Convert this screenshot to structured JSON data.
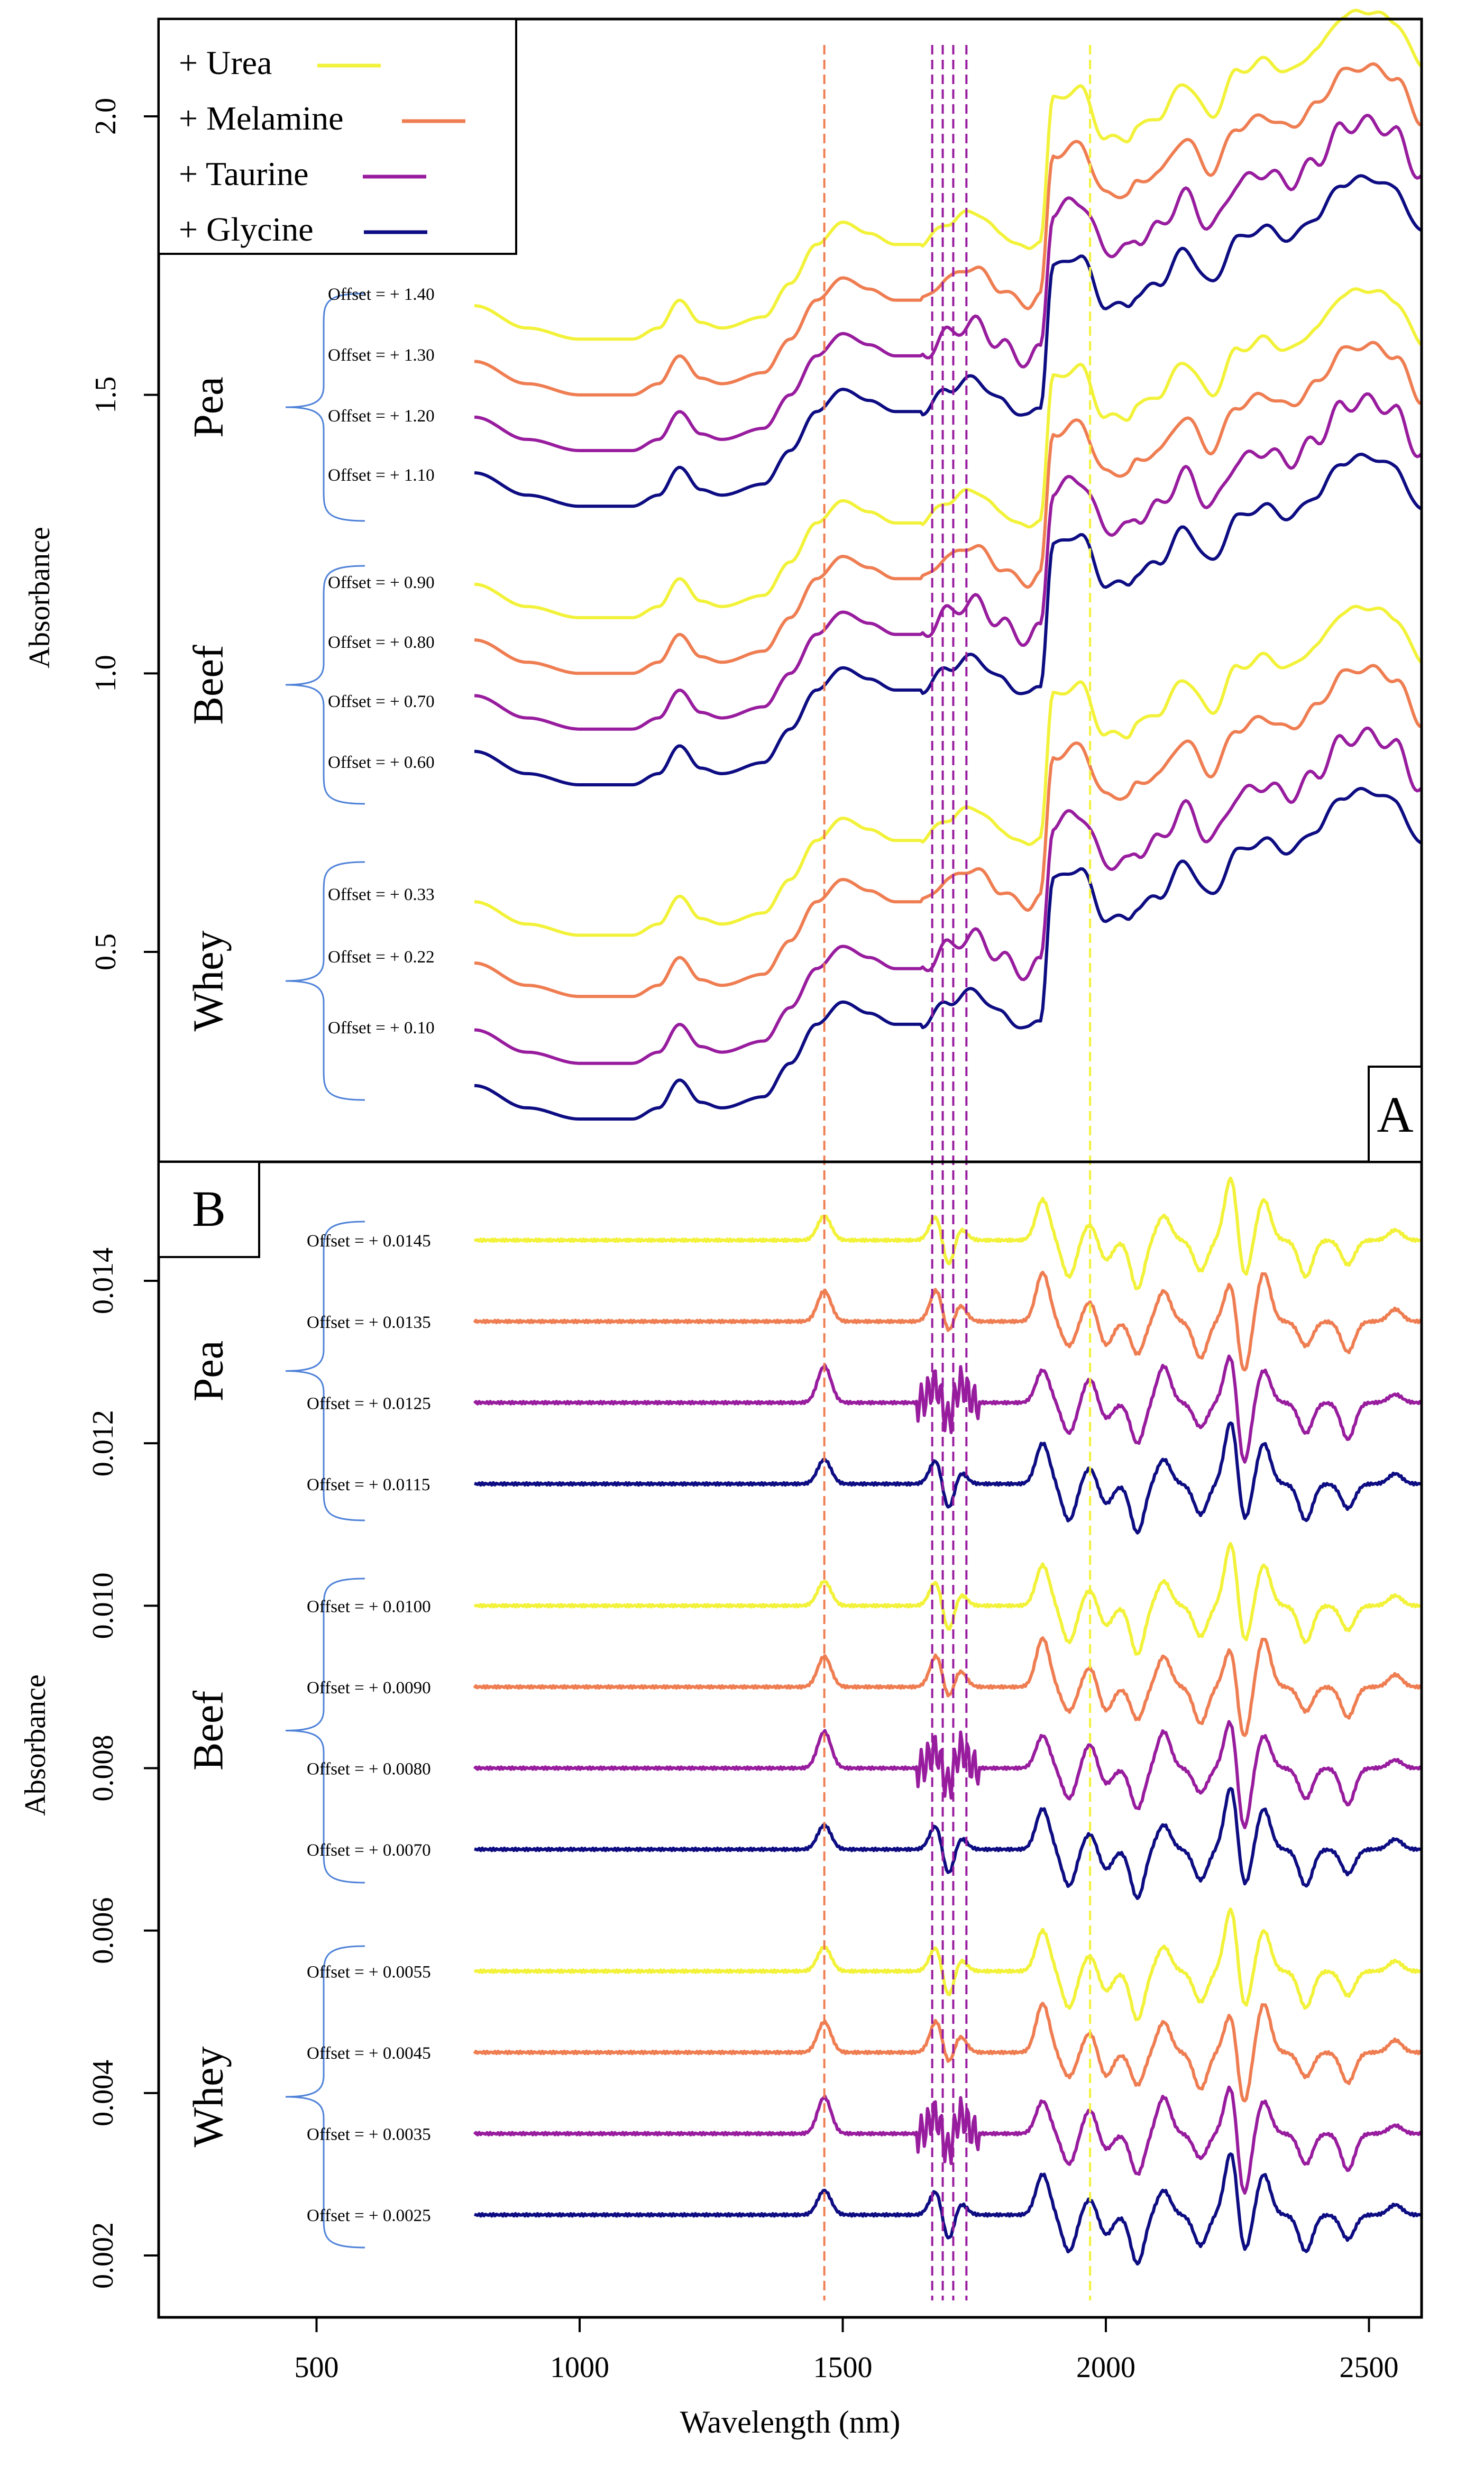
{
  "figure": {
    "xlabel": "Wavelength (nm)",
    "x_ticks": [
      "500",
      "1000",
      "1500",
      "2000",
      "2500"
    ]
  },
  "legend": {
    "entries": [
      {
        "label": "+ Urea",
        "color": "#f2f23a"
      },
      {
        "label": "+ Melamine",
        "color": "#ef7d52"
      },
      {
        "label": "+ Taurine",
        "color": "#981c9e"
      },
      {
        "label": "+ Glycine",
        "color": "#0d0c82"
      }
    ]
  },
  "colors": {
    "urea": "#f2f23a",
    "melamine": "#ef7d52",
    "taurine": "#981c9e",
    "glycine": "#0d0c82",
    "brace": "#4f82d8",
    "frame": "#000000"
  },
  "chart_data": [
    {
      "type": "line",
      "panel_label": "A",
      "ylabel": "Absorbance",
      "xlim": [
        200,
        2600
      ],
      "ylim": [
        0.2,
        2.2
      ],
      "y_ticks": [
        "0.5",
        "1.0",
        "1.5",
        "2.0"
      ],
      "reference_lines_nm": [
        {
          "x": 1465,
          "color": "#ef7d52"
        },
        {
          "x": 1670,
          "color": "#981c9e"
        },
        {
          "x": 1690,
          "color": "#981c9e"
        },
        {
          "x": 1710,
          "color": "#981c9e"
        },
        {
          "x": 1735,
          "color": "#981c9e"
        },
        {
          "x": 1970,
          "color": "#f2f23a"
        }
      ],
      "groups": [
        {
          "name": "Pea",
          "offset_labels": [
            "Offset = + 1.40",
            "Offset = + 1.30",
            "Offset = + 1.20",
            "Offset = + 1.10"
          ],
          "offsets": [
            1.4,
            1.3,
            1.2,
            1.1
          ]
        },
        {
          "name": "Beef",
          "offset_labels": [
            "Offset = + 0.90",
            "Offset = + 0.80",
            "Offset = + 0.70",
            "Offset = + 0.60"
          ],
          "offsets": [
            0.9,
            0.8,
            0.7,
            0.6
          ]
        },
        {
          "name": "Whey",
          "offset_labels": [
            "Offset = + 0.33",
            "Offset = + 0.22",
            "Offset = + 0.10"
          ],
          "offsets": [
            0.33,
            0.22,
            0.1,
            0.0
          ]
        }
      ],
      "base_spectrum": {
        "x_nm": [
          800,
          900,
          1000,
          1100,
          1150,
          1190,
          1230,
          1270,
          1350,
          1400,
          1450,
          1500,
          1550,
          1600,
          1650,
          1700,
          1750,
          1800,
          1850,
          1875,
          1900,
          1950,
          2000,
          2040,
          2060,
          2100,
          2150,
          2200,
          2250,
          2300,
          2350,
          2400,
          2450,
          2500,
          2550,
          2600
        ],
        "absorbance": [
          0.26,
          0.22,
          0.2,
          0.2,
          0.22,
          0.27,
          0.23,
          0.22,
          0.24,
          0.3,
          0.37,
          0.41,
          0.39,
          0.37,
          0.37,
          0.41,
          0.43,
          0.39,
          0.36,
          0.38,
          0.63,
          0.65,
          0.56,
          0.56,
          0.58,
          0.6,
          0.66,
          0.6,
          0.68,
          0.7,
          0.68,
          0.72,
          0.78,
          0.79,
          0.77,
          0.69
        ]
      }
    },
    {
      "type": "line",
      "panel_label": "B",
      "ylabel": "Absorbance",
      "xlim": [
        200,
        2600
      ],
      "ylim": [
        0.0015,
        0.0155
      ],
      "y_ticks": [
        "0.002",
        "0.004",
        "0.006",
        "0.008",
        "0.010",
        "0.012",
        "0.014"
      ],
      "groups": [
        {
          "name": "Pea",
          "offset_labels": [
            "Offset = + 0.0145",
            "Offset = + 0.0135",
            "Offset = + 0.0125",
            "Offset = + 0.0115"
          ],
          "offsets": [
            0.0145,
            0.0135,
            0.0125,
            0.0115
          ]
        },
        {
          "name": "Beef",
          "offset_labels": [
            "Offset = + 0.0100",
            "Offset = + 0.0090",
            "Offset = + 0.0080",
            "Offset = + 0.0070"
          ],
          "offsets": [
            0.01,
            0.009,
            0.008,
            0.007
          ]
        },
        {
          "name": "Whey",
          "offset_labels": [
            "Offset = + 0.0055",
            "Offset = + 0.0045",
            "Offset = + 0.0035",
            "Offset = + 0.0025"
          ],
          "offsets": [
            0.0055,
            0.0045,
            0.0035,
            0.0025
          ]
        }
      ],
      "derivative_features": {
        "x_nm": [
          1465,
          1680,
          1700,
          1720,
          1880,
          1930,
          1970,
          2000,
          2060,
          2110,
          2180,
          2240,
          2260,
          2300,
          2380,
          2460,
          2550
        ],
        "amplitude": [
          0.0003,
          0.0003,
          -0.0003,
          0.0002,
          0.0004,
          -0.0003,
          0.0002,
          -0.0002,
          -0.0004,
          0.0003,
          -0.0003,
          0.0006,
          -0.0006,
          0.0004,
          -0.0003,
          -0.0003,
          0.0001
        ]
      }
    }
  ]
}
